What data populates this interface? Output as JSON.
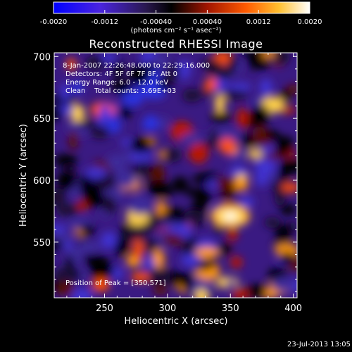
{
  "chart_data": {
    "type": "heatmap",
    "title": "Reconstructed RHESSI Image",
    "xlabel": "Heliocentric X (arcsec)",
    "ylabel": "Heliocentric Y (arcsec)",
    "xlim": [
      210,
      403
    ],
    "ylim": [
      505,
      703
    ],
    "x_ticks": [
      "250",
      "300",
      "350",
      "400"
    ],
    "y_ticks": [
      "550",
      "600",
      "650",
      "700"
    ],
    "x_tick_values": [
      250,
      300,
      350,
      400
    ],
    "y_tick_values": [
      550,
      600,
      650,
      700
    ],
    "colorbar": {
      "range": [
        -0.002,
        0.002
      ],
      "ticks": [
        "-0.0020",
        "-0.0012",
        "-0.00040",
        "0.00040",
        "0.0012",
        "0.0020"
      ],
      "tick_values": [
        -0.002,
        -0.0012,
        -0.0004,
        0.0004,
        0.0012,
        0.002
      ],
      "unit_label": "(photons cm⁻² s⁻¹ asec⁻²)"
    },
    "peak": [
      350,
      571
    ],
    "annotations": {
      "time_range": " 8-Jan-2007 22:26:48.000 to 22:29:16.000",
      "detectors": "Detectors: 4F 5F 6F 7F 8F, Att 0",
      "energy": "Energy Range: 6.0 - 12.0 keV",
      "clean": "Clean    Total counts: 3.69E+03",
      "peak_text": "Position of Peak = [350,571]"
    },
    "footer_date": "23-Jul-2013 13:05",
    "colors": {
      "background": "#000000",
      "axis": "#ffffff",
      "colormap": [
        "#0000ff",
        "#5a2ad6",
        "#2a1a50",
        "#000000",
        "#6a0a00",
        "#d82a00",
        "#ff8a00",
        "#ffe040",
        "#ffffff"
      ]
    }
  }
}
